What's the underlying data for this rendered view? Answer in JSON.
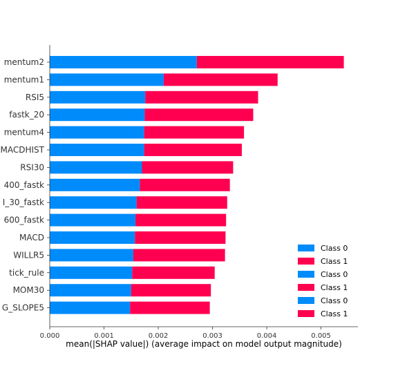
{
  "chart_data": {
    "type": "bar",
    "orientation": "horizontal",
    "stacked": true,
    "categories": [
      "mentum2",
      "mentum1",
      "RSI5",
      "fastk_20",
      "mentum4",
      "MACDHIST",
      "RSI30",
      "400_fastk",
      "I_30_fastk",
      "600_fastk",
      "MACD",
      "WILLR5",
      "tick_rule",
      "MOM30",
      "G_SLOPE5"
    ],
    "series": [
      {
        "name": "Class 0",
        "color": "#008bfb",
        "values": [
          0.00271,
          0.0021,
          0.00176,
          0.00175,
          0.00174,
          0.00174,
          0.0017,
          0.00166,
          0.0016,
          0.00158,
          0.00157,
          0.00154,
          0.00152,
          0.0015,
          0.00148
        ]
      },
      {
        "name": "Class 1",
        "color": "#ff0051",
        "values": [
          0.00271,
          0.0021,
          0.00208,
          0.002,
          0.00184,
          0.0018,
          0.00168,
          0.00166,
          0.00167,
          0.00167,
          0.00167,
          0.00169,
          0.00152,
          0.00147,
          0.00147
        ]
      }
    ],
    "xlabel": "mean(|SHAP value|) (average impact on model output magnitude)",
    "ylabel": "",
    "xlim": [
      0,
      0.00568
    ],
    "xticks": [
      "0.000",
      "0.001",
      "0.002",
      "0.003",
      "0.004",
      "0.005"
    ],
    "xtick_values": [
      0,
      0.001,
      0.002,
      0.003,
      0.004,
      0.005
    ],
    "grid": false,
    "legend": {
      "placement": "lower-right",
      "entries": [
        {
          "label": "Class 0",
          "color": "#008bfb"
        },
        {
          "label": "Class 1",
          "color": "#ff0051"
        },
        {
          "label": "Class 0",
          "color": "#008bfb"
        },
        {
          "label": "Class 1",
          "color": "#ff0051"
        },
        {
          "label": "Class 0",
          "color": "#008bfb"
        },
        {
          "label": "Class 1",
          "color": "#ff0051"
        }
      ]
    }
  }
}
